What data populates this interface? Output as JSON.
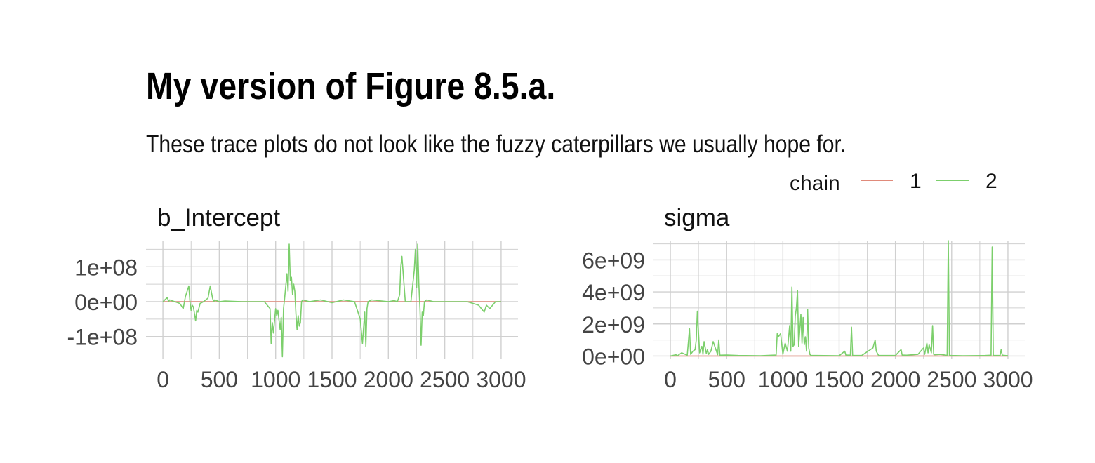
{
  "title": "My version of Figure 8.5.a.",
  "subtitle": "These trace plots do not look like the fuzzy caterpillars we usually hope for.",
  "legend": {
    "title": "chain",
    "entries": [
      {
        "label": "1",
        "color": "#e08a7a"
      },
      {
        "label": "2",
        "color": "#7ccf6c"
      }
    ]
  },
  "chart_data": [
    {
      "type": "line",
      "panel": "b_Intercept",
      "xticks": [
        "0",
        "500",
        "1000",
        "1500",
        "2000",
        "2500",
        "3000"
      ],
      "yticks": [
        "-1e+08",
        "0e+00",
        "1e+08"
      ],
      "xlim": [
        -150,
        3150
      ],
      "ylim": [
        -165000000,
        175000000
      ],
      "series": [
        {
          "name": "1",
          "color": "#e08a7a",
          "x": [
            0,
            3000
          ],
          "y": [
            0,
            0
          ]
        },
        {
          "name": "2",
          "color": "#7ccf6c",
          "x": [
            0,
            40,
            50,
            60,
            150,
            180,
            200,
            210,
            230,
            240,
            250,
            260,
            270,
            290,
            300,
            310,
            330,
            360,
            400,
            420,
            440,
            450,
            460,
            500,
            550,
            700,
            900,
            950,
            960,
            970,
            980,
            1000,
            1010,
            1020,
            1040,
            1050,
            1060,
            1070,
            1080,
            1100,
            1110,
            1120,
            1130,
            1140,
            1150,
            1160,
            1170,
            1180,
            1190,
            1200,
            1210,
            1220,
            1230,
            1240,
            1300,
            1400,
            1500,
            1600,
            1700,
            1750,
            1770,
            1790,
            1800,
            1810,
            1820,
            1850,
            2000,
            2050,
            2080,
            2100,
            2110,
            2120,
            2150,
            2200,
            2230,
            2240,
            2250,
            2260,
            2270,
            2280,
            2290,
            2300,
            2310,
            2320,
            2340,
            2400,
            2500,
            2700,
            2800,
            2850,
            2870,
            2900,
            2950,
            3000
          ],
          "y": [
            0,
            12000000,
            0,
            5000000,
            -5000000,
            -20000000,
            15000000,
            25000000,
            45000000,
            0,
            -25000000,
            -10000000,
            -15000000,
            -55000000,
            -25000000,
            -30000000,
            -5000000,
            0,
            10000000,
            45000000,
            10000000,
            0,
            5000000,
            0,
            2000000,
            0,
            0,
            -20000000,
            -120000000,
            -60000000,
            -90000000,
            -20000000,
            -40000000,
            -25000000,
            -80000000,
            -45000000,
            -158000000,
            -20000000,
            10000000,
            80000000,
            30000000,
            165000000,
            60000000,
            70000000,
            20000000,
            50000000,
            30000000,
            -35000000,
            -80000000,
            -40000000,
            -70000000,
            -60000000,
            0,
            5000000,
            0,
            5000000,
            -3000000,
            5000000,
            0,
            -50000000,
            -120000000,
            -30000000,
            -128000000,
            -20000000,
            0,
            5000000,
            0,
            3000000,
            0,
            20000000,
            100000000,
            130000000,
            0,
            0,
            90000000,
            150000000,
            40000000,
            165000000,
            50000000,
            -20000000,
            -125000000,
            -30000000,
            -40000000,
            0,
            5000000,
            0,
            0,
            0,
            -10000000,
            -30000000,
            -10000000,
            -20000000,
            0,
            0
          ]
        }
      ]
    },
    {
      "type": "line",
      "panel": "sigma",
      "xticks": [
        "0",
        "500",
        "1000",
        "1500",
        "2000",
        "2500",
        "3000"
      ],
      "yticks": [
        "0e+00",
        "2e+09",
        "4e+09",
        "6e+09"
      ],
      "xlim": [
        -150,
        3150
      ],
      "ylim": [
        -200000000,
        7200000000
      ],
      "series": [
        {
          "name": "1",
          "color": "#e08a7a",
          "x": [
            0,
            3000
          ],
          "y": [
            0,
            0
          ]
        },
        {
          "name": "2",
          "color": "#7ccf6c",
          "x": [
            0,
            50,
            60,
            100,
            150,
            170,
            180,
            200,
            220,
            230,
            240,
            260,
            280,
            290,
            300,
            320,
            330,
            340,
            360,
            380,
            420,
            430,
            440,
            500,
            600,
            800,
            940,
            950,
            960,
            980,
            1000,
            1020,
            1040,
            1050,
            1060,
            1070,
            1080,
            1090,
            1100,
            1110,
            1120,
            1130,
            1140,
            1150,
            1160,
            1170,
            1180,
            1190,
            1200,
            1210,
            1220,
            1230,
            1240,
            1250,
            1300,
            1500,
            1550,
            1560,
            1600,
            1610,
            1620,
            1700,
            1800,
            1820,
            1830,
            1850,
            2000,
            2050,
            2060,
            2100,
            2200,
            2250,
            2260,
            2280,
            2290,
            2300,
            2320,
            2330,
            2340,
            2350,
            2400,
            2460,
            2470,
            2480,
            2500,
            2600,
            2800,
            2850,
            2860,
            2870,
            2900,
            2930,
            2940,
            2950,
            3000
          ],
          "y": [
            0,
            80000000,
            0,
            200000000,
            50000000,
            1700000000,
            100000000,
            300000000,
            400000000,
            1000000000,
            2800000000,
            200000000,
            600000000,
            100000000,
            900000000,
            150000000,
            400000000,
            100000000,
            300000000,
            900000000,
            80000000,
            1000000000,
            50000000,
            60000000,
            30000000,
            20000000,
            60000000,
            1400000000,
            1200000000,
            1400000000,
            100000000,
            800000000,
            300000000,
            1100000000,
            1900000000,
            300000000,
            4300000000,
            600000000,
            700000000,
            2500000000,
            3000000000,
            4100000000,
            600000000,
            1600000000,
            2600000000,
            800000000,
            2400000000,
            700000000,
            1200000000,
            300000000,
            2900000000,
            500000000,
            100000000,
            40000000,
            30000000,
            20000000,
            300000000,
            60000000,
            50000000,
            1800000000,
            40000000,
            30000000,
            500000000,
            1000000000,
            300000000,
            40000000,
            30000000,
            400000000,
            60000000,
            50000000,
            100000000,
            500000000,
            100000000,
            800000000,
            200000000,
            700000000,
            200000000,
            1900000000,
            100000000,
            80000000,
            100000000,
            40000000,
            7200000000,
            40000000,
            30000000,
            20000000,
            30000000,
            50000000,
            6800000000,
            40000000,
            30000000,
            30000000,
            400000000,
            50000000,
            20000000
          ]
        }
      ]
    }
  ]
}
